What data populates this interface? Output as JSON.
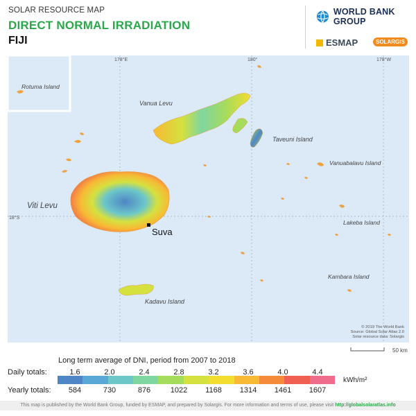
{
  "header": {
    "kicker": "SOLAR RESOURCE MAP",
    "title": "DIRECT NORMAL IRRADIATION",
    "country": "FIJI"
  },
  "logos": {
    "world_bank": "WORLD BANK GROUP",
    "esmap": "ESMAP",
    "solargis": "SOLARGIS"
  },
  "map": {
    "graticule": {
      "lon_178e": "178°E",
      "lon_180": "180°",
      "lon_178w": "178°W",
      "lat_18s": "18°S"
    },
    "labels": {
      "rotuma": "Rotuma Island",
      "vanua_levu": "Vanua Levu",
      "taveuni": "Taveuni Island",
      "vanuabalavu": "Vanuabalavu Island",
      "viti_levu": "Viti Levu",
      "suva": "Suva",
      "lakeba": "Lakeba Island",
      "kambara": "Kambara Island",
      "kadavu": "Kadavu Island"
    },
    "credits": [
      "© 2019 The World Bank",
      "Source: Global Solar Atlas 2.0",
      "Solar resource data: Solargis"
    ],
    "scale_label": "50 km"
  },
  "legend": {
    "title": "Long term average of DNI, period from 2007 to 2018",
    "daily_label": "Daily totals:",
    "yearly_label": "Yearly totals:",
    "daily_ticks": [
      "1.6",
      "2.0",
      "2.4",
      "2.8",
      "3.2",
      "3.6",
      "4.0",
      "4.4"
    ],
    "yearly_ticks": [
      "584",
      "730",
      "876",
      "1022",
      "1168",
      "1314",
      "1461",
      "1607"
    ],
    "unit": "kWh/m²",
    "colors": [
      "#4f86c6",
      "#5aa8d6",
      "#6cc7c9",
      "#7fd6a0",
      "#a6dc5c",
      "#d5e13f",
      "#f3de2f",
      "#f8b934",
      "#f58a3b",
      "#ef5f52",
      "#ef6c8c"
    ]
  },
  "footer": {
    "text": "This map is published by the World Bank Group, funded by ESMAP, and prepared by Solargis. For more information and terms of use, please visit ",
    "link": "http://globalsolaratlas.info"
  }
}
